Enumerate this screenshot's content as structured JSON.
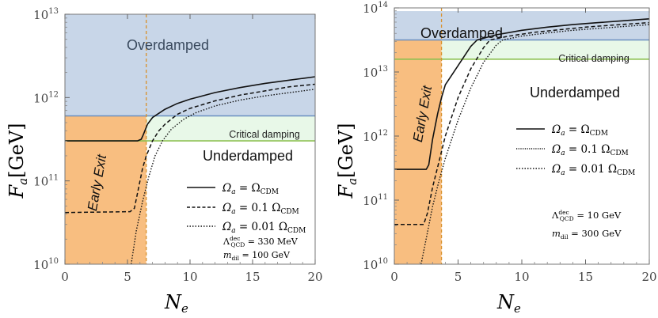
{
  "chart_data": [
    {
      "type": "line",
      "id": "left",
      "xlabel": "N",
      "xlabel_sub": "e",
      "ylabel_main": "F",
      "ylabel_sub": "a",
      "ylabel_unit": "[GeV]",
      "xlim": [
        0,
        20
      ],
      "ylim_log10": [
        10,
        13
      ],
      "x_ticks": [
        0,
        5,
        10,
        15,
        20
      ],
      "y_ticks": [
        {
          "base": "10",
          "exp": "10",
          "val": 10
        },
        {
          "base": "10",
          "exp": "11",
          "val": 11
        },
        {
          "base": "10",
          "exp": "12",
          "val": 12
        },
        {
          "base": "10",
          "exp": "13",
          "val": 13
        }
      ],
      "regions": [
        {
          "name": "overdamped",
          "label": "Overdamped",
          "color": "#c8d6e8",
          "x": [
            0,
            20
          ],
          "y_log10": [
            11.78,
            13
          ]
        },
        {
          "name": "critical-damping",
          "label": "Critical damping",
          "color": "#e8f8e8",
          "x": [
            0,
            20
          ],
          "y_log10": [
            11.48,
            11.78
          ]
        },
        {
          "name": "underdamped",
          "label": "Underdamped",
          "color": "#ffffff",
          "x": [
            0,
            20
          ],
          "y_log10": [
            10,
            11.48
          ]
        },
        {
          "name": "early-exit",
          "label": "Early Exit",
          "color": "#f8be80",
          "x": [
            0,
            6.5
          ],
          "y_log10": [
            10,
            11.78
          ]
        }
      ],
      "boundaries": [
        {
          "name": "overdamped-boundary",
          "y_log10": 11.78,
          "color": "#6a8fc0"
        },
        {
          "name": "critical-boundary",
          "y_log10": 11.48,
          "color": "#8cc050"
        },
        {
          "name": "early-exit-boundary",
          "x": 6.5,
          "color": "#d9902a"
        }
      ],
      "series": [
        {
          "name": "Ω_a = Ω_CDM",
          "dash": "solid",
          "x": [
            0,
            5.8,
            6.1,
            6.25,
            6.6,
            7,
            8,
            9,
            10,
            12,
            14,
            16,
            18,
            20
          ],
          "y_log10": [
            11.48,
            11.48,
            11.5,
            11.55,
            11.68,
            11.76,
            11.86,
            11.93,
            11.98,
            12.06,
            12.12,
            12.17,
            12.21,
            12.25
          ]
        },
        {
          "name": "Ω_a = 0.1 Ω_CDM",
          "dash": "dashed",
          "x": [
            0,
            5.2,
            5.55,
            5.8,
            6.2,
            6.5,
            7,
            7.5,
            8,
            9,
            10,
            12,
            14,
            16,
            18,
            20
          ],
          "y_log10": [
            10.62,
            10.63,
            10.67,
            10.85,
            11.15,
            11.3,
            11.48,
            11.6,
            11.68,
            11.8,
            11.87,
            11.96,
            12.03,
            12.08,
            12.13,
            12.16
          ]
        },
        {
          "name": "Ω_a = 0.01 Ω_CDM",
          "dash": "dotted",
          "x": [
            5.3,
            5.7,
            6.2,
            6.7,
            7.2,
            7.8,
            8.5,
            9.5,
            10.5,
            12,
            14,
            16,
            18,
            20
          ],
          "y_log10": [
            10,
            10.4,
            10.75,
            11.05,
            11.3,
            11.48,
            11.62,
            11.74,
            11.82,
            11.9,
            11.97,
            12.02,
            12.06,
            12.1
          ]
        }
      ],
      "legend_position": "bottom-right",
      "annotations": {
        "lambda": "330 MeV",
        "mdil": "100 GeV"
      }
    },
    {
      "type": "line",
      "id": "right",
      "xlabel": "N",
      "xlabel_sub": "e",
      "ylabel_main": "F",
      "ylabel_sub": "a",
      "ylabel_unit": "[GeV]",
      "xlim": [
        0,
        20
      ],
      "ylim_log10": [
        10,
        14
      ],
      "x_ticks": [
        0,
        5,
        10,
        15,
        20
      ],
      "y_ticks": [
        {
          "base": "10",
          "exp": "10",
          "val": 10
        },
        {
          "base": "10",
          "exp": "11",
          "val": 11
        },
        {
          "base": "10",
          "exp": "12",
          "val": 12
        },
        {
          "base": "10",
          "exp": "13",
          "val": 13
        },
        {
          "base": "10",
          "exp": "14",
          "val": 14
        }
      ],
      "regions": [
        {
          "name": "overdamped",
          "label": "Overdamped",
          "color": "#c8d6e8",
          "x": [
            0,
            20
          ],
          "y_log10": [
            13.5,
            13.95
          ]
        },
        {
          "name": "critical-damping",
          "label": "Critical damping",
          "color": "#e8f8e8",
          "x": [
            0,
            20
          ],
          "y_log10": [
            13.2,
            13.5
          ]
        },
        {
          "name": "underdamped",
          "label": "Underdamped",
          "color": "#ffffff",
          "x": [
            0,
            20
          ],
          "y_log10": [
            10,
            13.2
          ]
        },
        {
          "name": "early-exit",
          "label": "Early Exit",
          "color": "#f8be80",
          "x": [
            0,
            3.7
          ],
          "y_log10": [
            10,
            13.5
          ]
        }
      ],
      "boundaries": [
        {
          "name": "overdamped-boundary",
          "y_log10": 13.5,
          "color": "#6a8fc0"
        },
        {
          "name": "critical-boundary",
          "y_log10": 13.2,
          "color": "#8cc050"
        },
        {
          "name": "early-exit-boundary",
          "x": 3.7,
          "color": "#d9902a"
        }
      ],
      "series": [
        {
          "name": "Ω_a = Ω_CDM",
          "dash": "solid",
          "x": [
            0,
            2.5,
            2.7,
            3,
            3.4,
            3.7,
            4,
            5,
            6,
            6.5,
            8,
            10,
            12,
            14,
            16,
            18,
            20
          ],
          "y_log10": [
            11.48,
            11.48,
            11.55,
            11.95,
            12.35,
            12.6,
            12.8,
            13.1,
            13.4,
            13.5,
            13.58,
            13.65,
            13.7,
            13.74,
            13.77,
            13.8,
            13.83
          ]
        },
        {
          "name": "Ω_a = 0.1 Ω_CDM",
          "dash": "dashed",
          "x": [
            0,
            2.3,
            2.6,
            3,
            3.5,
            4,
            5,
            6,
            7,
            7.5,
            9,
            11,
            13,
            15,
            17,
            20
          ],
          "y_log10": [
            10.62,
            10.62,
            10.8,
            11.2,
            11.6,
            12.0,
            12.6,
            13.05,
            13.38,
            13.5,
            13.56,
            13.62,
            13.66,
            13.7,
            13.73,
            13.77
          ]
        },
        {
          "name": "Ω_a = 0.01 Ω_CDM",
          "dash": "dotted",
          "x": [
            2.1,
            2.5,
            3,
            3.5,
            4,
            5,
            6,
            7,
            8,
            8.5,
            10,
            12,
            14,
            16,
            18,
            20
          ],
          "y_log10": [
            10,
            10.4,
            10.9,
            11.3,
            11.65,
            12.25,
            12.75,
            13.15,
            13.42,
            13.5,
            13.56,
            13.61,
            13.65,
            13.68,
            13.71,
            13.74
          ]
        }
      ],
      "legend_position": "center-right",
      "annotations": {
        "lambda": "10 GeV",
        "mdil": "300 GeV"
      }
    }
  ]
}
